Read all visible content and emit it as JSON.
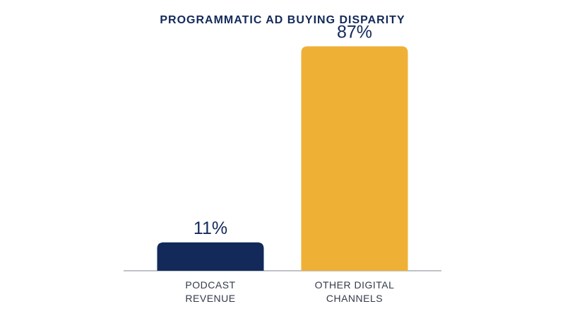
{
  "chart_data": {
    "type": "bar",
    "title": "PROGRAMMATIC AD BUYING DISPARITY",
    "categories": [
      [
        "PODCAST",
        "REVENUE"
      ],
      [
        "OTHER DIGITAL",
        "CHANNELS"
      ]
    ],
    "values": [
      11,
      87
    ],
    "value_labels": [
      "11%",
      "87%"
    ],
    "colors": [
      "#12295a",
      "#efb036"
    ],
    "ylim": [
      0,
      100
    ],
    "grid": false,
    "legend": "none"
  }
}
